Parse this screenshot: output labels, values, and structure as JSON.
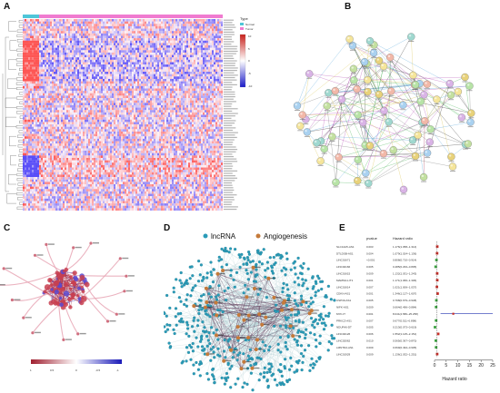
{
  "panels": {
    "a": {
      "label": "A"
    },
    "b": {
      "label": "B"
    },
    "c": {
      "label": "C"
    },
    "d": {
      "label": "D"
    },
    "e": {
      "label": "E"
    }
  },
  "heatmap": {
    "legend_title": "Type",
    "groups": [
      "Normal",
      "Tumor"
    ],
    "group_colors": {
      "Normal": "#4fc6d8",
      "Tumor": "#f07bd0"
    },
    "scale_ticks": [
      "10",
      "5",
      "0",
      "-5",
      "-10"
    ],
    "colors": {
      "high": "#e8352e",
      "mid": "#ffffff",
      "low": "#3535d0"
    }
  },
  "network_c": {
    "scale_ticks": [
      "1",
      "0.5",
      "0",
      "-0.5",
      "-1"
    ],
    "colors": {
      "pos": "#b03040",
      "neg": "#2020c0"
    }
  },
  "network_d": {
    "legend": [
      {
        "label": "lncRNA",
        "color": "#2a9bb8"
      },
      {
        "label": "Angiogenesis",
        "color": "#c57a3a"
      }
    ]
  },
  "chart_data": {
    "type": "scatter",
    "title": "",
    "columns": {
      "pvalue": "pvalue",
      "hr": "Hazard ratio"
    },
    "xlabel": "Hazard ratio",
    "xlim": [
      0,
      25
    ],
    "xticks": [
      0,
      5,
      10,
      15,
      20,
      25
    ],
    "rows": [
      {
        "gene": "SLC12A5-AS1",
        "pvalue": "0.003",
        "hr_text": "1.176(1.058~1.314)",
        "hr": 1.176,
        "low": 1.058,
        "high": 1.314
      },
      {
        "gene": "DTLDSB-AS1",
        "pvalue": "0.004",
        "hr_text": "1.079(1.024~1.136)",
        "hr": 1.079,
        "low": 1.024,
        "high": 1.136
      },
      {
        "gene": "LINC01671",
        "pvalue": "<0.001",
        "hr_text": "0.808(0.710~0.914)",
        "hr": 0.808,
        "low": 0.71,
        "high": 0.914
      },
      {
        "gene": "LINC02166",
        "pvalue": "0.005",
        "hr_text": "0.485(0.293~0.805)",
        "hr": 0.485,
        "low": 0.293,
        "high": 0.805
      },
      {
        "gene": "LINC01615",
        "pvalue": "0.009",
        "hr_text": "1.132(1.031~1.243)",
        "hr": 1.132,
        "low": 1.031,
        "high": 1.243
      },
      {
        "gene": "MAMSG1-IT1",
        "pvalue": "0.001",
        "hr_text": "1.171(1.066~1.306)",
        "hr": 1.171,
        "low": 1.066,
        "high": 1.306
      },
      {
        "gene": "LINC01614",
        "pvalue": "0.007",
        "hr_text": "1.021(1.006~1.037)",
        "hr": 1.021,
        "low": 1.006,
        "high": 1.037
      },
      {
        "gene": "CDKN-AS1",
        "pvalue": "0.001",
        "hr_text": "1.346(1.127~1.607)",
        "hr": 1.346,
        "low": 1.127,
        "high": 1.607
      },
      {
        "gene": "USP30-AS1",
        "pvalue": "0.005",
        "hr_text": "0.798(0.679~0.948)",
        "hr": 0.798,
        "low": 0.679,
        "high": 0.948
      },
      {
        "gene": "NIFK-AS1",
        "pvalue": "0.009",
        "hr_text": "0.664(0.496~0.884)",
        "hr": 0.664,
        "low": 0.496,
        "high": 0.884
      },
      {
        "gene": "MYF-IT",
        "pvalue": "0.001",
        "hr_text": "8.041(2.580~25.258)",
        "hr": 8.041,
        "low": 2.58,
        "high": 25.258
      },
      {
        "gene": "PRKCZ-AS1",
        "pvalue": "0.007",
        "hr_text": "0.677(0.511~0.898)",
        "hr": 0.677,
        "low": 0.511,
        "high": 0.898
      },
      {
        "gene": "NDUFA6-DT",
        "pvalue": "0.005",
        "hr_text": "0.213(0.073~0.619)",
        "hr": 0.213,
        "low": 0.073,
        "high": 0.619
      },
      {
        "gene": "LINC02126",
        "pvalue": "0.006",
        "hr_text": "1.552(1.125~2.151)",
        "hr": 1.552,
        "low": 1.125,
        "high": 2.151
      },
      {
        "gene": "LINC02062",
        "pvalue": "0.010",
        "hr_text": "0.565(0.367~0.870)",
        "hr": 0.565,
        "low": 0.367,
        "high": 0.87
      },
      {
        "gene": "LMNTD2-AS1",
        "pvalue": "0.009",
        "hr_text": "0.669(0.494~0.905)",
        "hr": 0.669,
        "low": 0.494,
        "high": 0.905
      },
      {
        "gene": "LINC01929",
        "pvalue": "0.009",
        "hr_text": "1.136(1.032~1.251)",
        "hr": 1.136,
        "low": 1.032,
        "high": 1.251
      }
    ]
  }
}
